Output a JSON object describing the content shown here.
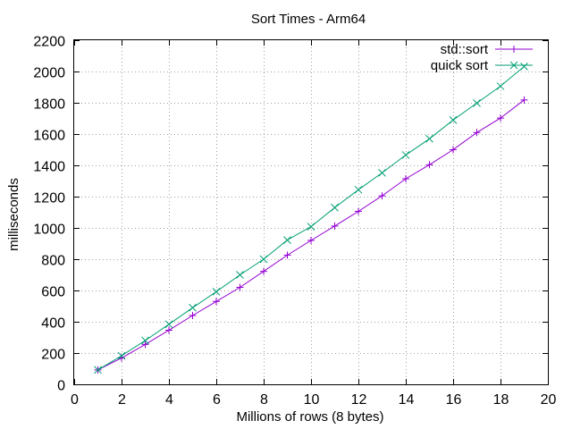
{
  "chart_data": {
    "type": "line",
    "title": "Sort Times - Arm64",
    "xlabel": "Millions of rows (8 bytes)",
    "ylabel": "milliseconds",
    "xlim": [
      0,
      20
    ],
    "ylim": [
      0,
      2200
    ],
    "xticks": [
      0,
      2,
      4,
      6,
      8,
      10,
      12,
      14,
      16,
      18,
      20
    ],
    "yticks": [
      0,
      200,
      400,
      600,
      800,
      1000,
      1200,
      1400,
      1600,
      1800,
      2000,
      2200
    ],
    "grid": true,
    "legend_position": "top-right",
    "series": [
      {
        "name": "std::sort",
        "color": "#9400d3",
        "marker": "plus",
        "x": [
          1,
          2,
          3,
          4,
          5,
          6,
          7,
          8,
          9,
          10,
          11,
          12,
          13,
          14,
          15,
          16,
          17,
          18,
          19
        ],
        "y": [
          92,
          168,
          255,
          346,
          440,
          530,
          620,
          722,
          826,
          920,
          1012,
          1106,
          1205,
          1314,
          1404,
          1500,
          1610,
          1702,
          1818
        ]
      },
      {
        "name": "quick sort",
        "color": "#009e73",
        "marker": "x",
        "x": [
          1,
          2,
          3,
          4,
          5,
          6,
          7,
          8,
          9,
          10,
          11,
          12,
          13,
          14,
          15,
          16,
          17,
          18,
          19
        ],
        "y": [
          92,
          182,
          280,
          384,
          490,
          592,
          700,
          800,
          922,
          1008,
          1130,
          1244,
          1352,
          1466,
          1570,
          1690,
          1798,
          1906,
          2032
        ]
      }
    ]
  }
}
